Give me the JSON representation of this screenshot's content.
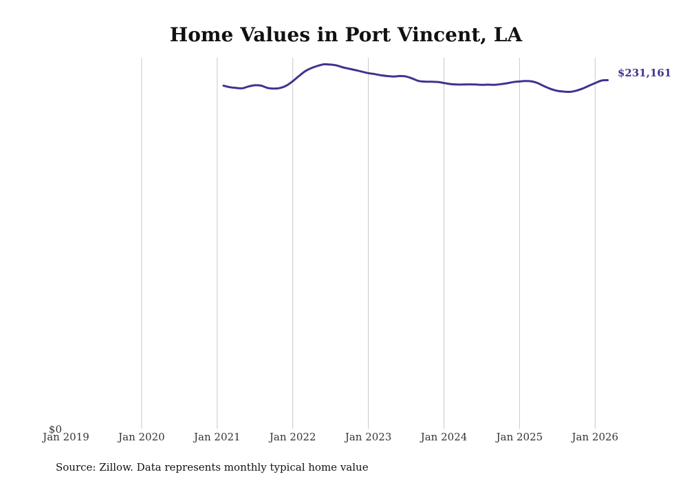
{
  "chart_data": {
    "type": "line",
    "title": "Home Values in Port Vincent, LA",
    "xlabel": "",
    "ylabel": "",
    "x_tick_labels": [
      "Jan 2019",
      "Jan 2020",
      "Jan 2021",
      "Jan 2022",
      "Jan 2023",
      "Jan 2024",
      "Jan 2025",
      "Jan 2026"
    ],
    "x_ticks": [
      "2019-01",
      "2020-01",
      "2021-01",
      "2022-01",
      "2023-01",
      "2024-01",
      "2025-01",
      "2026-01"
    ],
    "y_tick_labels": [
      "$0"
    ],
    "ylim": [
      0,
      246000
    ],
    "grid": "vertical",
    "line_color": "#3d3391",
    "end_label": "$231,161",
    "series": [
      {
        "x": [
          "2021-02",
          "2021-03",
          "2021-04",
          "2021-05",
          "2021-06",
          "2021-07",
          "2021-08",
          "2021-09",
          "2021-10",
          "2021-11",
          "2021-12",
          "2022-01",
          "2022-02",
          "2022-03",
          "2022-04",
          "2022-05",
          "2022-06",
          "2022-07",
          "2022-08",
          "2022-09",
          "2022-10",
          "2022-11",
          "2022-12",
          "2023-01",
          "2023-02",
          "2023-03",
          "2023-04",
          "2023-05",
          "2023-06",
          "2023-07",
          "2023-08",
          "2023-09",
          "2023-10",
          "2023-11",
          "2023-12",
          "2024-01",
          "2024-02",
          "2024-03",
          "2024-04",
          "2024-05",
          "2024-06",
          "2024-07",
          "2024-08",
          "2024-09",
          "2024-10",
          "2024-11",
          "2024-12",
          "2025-01",
          "2025-02",
          "2025-03",
          "2025-04",
          "2025-05",
          "2025-06",
          "2025-07",
          "2025-08",
          "2025-09",
          "2025-10",
          "2025-11",
          "2025-12",
          "2026-01",
          "2026-02",
          "2026-03"
        ],
        "values": [
          227500,
          226500,
          226000,
          225800,
          227000,
          227800,
          227500,
          226000,
          225600,
          226000,
          227600,
          230500,
          234000,
          237200,
          239300,
          240700,
          241700,
          241500,
          240900,
          239600,
          238700,
          237800,
          236800,
          235800,
          235200,
          234400,
          233900,
          233600,
          233900,
          233600,
          232200,
          230600,
          230200,
          230100,
          230000,
          229300,
          228600,
          228300,
          228300,
          228400,
          228300,
          228100,
          228200,
          228100,
          228500,
          229100,
          229900,
          230300,
          230600,
          230300,
          229000,
          227000,
          225300,
          224100,
          223600,
          223400,
          224200,
          225600,
          227400,
          229200,
          230900,
          231161
        ]
      }
    ]
  },
  "source_note": "Source: Zillow. Data represents monthly typical home value"
}
